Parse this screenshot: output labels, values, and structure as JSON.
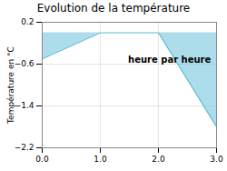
{
  "chart_data": {
    "type": "area",
    "title": "Evolution de la température",
    "xlabel": "heure par heure",
    "ylabel": "Température en °C",
    "x": [
      0,
      1,
      2,
      3
    ],
    "values": [
      -0.5,
      0.0,
      0.0,
      -1.8
    ],
    "color": "#5bbcd6",
    "xlim": [
      0,
      3
    ],
    "ylim": [
      -2.2,
      0.2
    ],
    "xticks": [
      0,
      1,
      2,
      3
    ],
    "yticks": [
      0.2,
      -0.6,
      -1.4,
      -2.2
    ],
    "grid": true
  }
}
